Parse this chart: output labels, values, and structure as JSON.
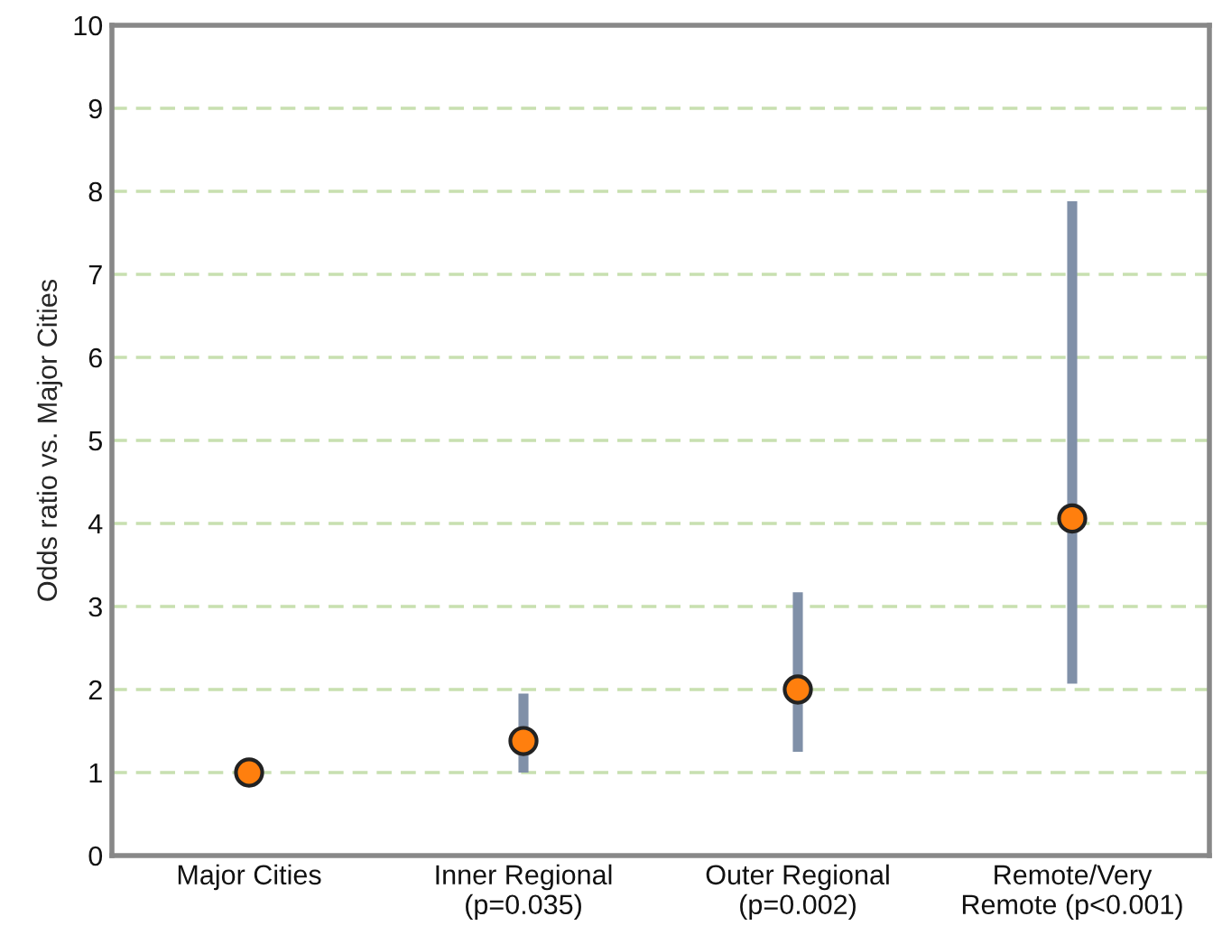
{
  "chart_data": {
    "type": "scatter",
    "ylabel": "Odds ratio vs. Major Cities",
    "categories": [
      "Major Cities",
      "Inner Regional\n(p=0.035)",
      "Outer Regional\n(p=0.002)",
      "Remote/Very\nRemote (p<0.001)"
    ],
    "series": [
      {
        "color": "#ff7f0e",
        "values": [
          1.0,
          1.38,
          2.0,
          4.06
        ],
        "errors": [
          null,
          [
            1.0,
            1.95
          ],
          [
            1.25,
            3.17
          ],
          [
            2.07,
            7.88
          ]
        ]
      }
    ],
    "ylim": [
      0,
      10
    ],
    "yticks": [
      0,
      1,
      2,
      3,
      4,
      5,
      6,
      7,
      8,
      9,
      10
    ],
    "grid": "y",
    "marker": "circle",
    "legend": false
  }
}
